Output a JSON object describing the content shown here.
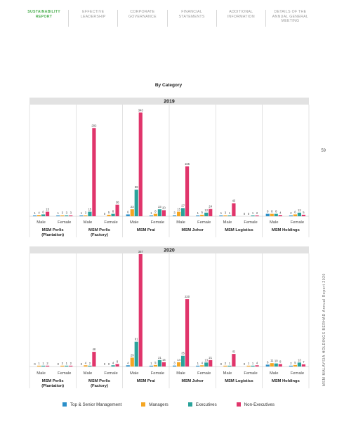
{
  "nav": [
    {
      "label": "SUSTAINABILITY REPORT",
      "active": true
    },
    {
      "label": "EFFECTIVE LEADERSHIP",
      "active": false
    },
    {
      "label": "CORPORATE GOVERNANCE",
      "active": false
    },
    {
      "label": "FINANCIAL STATEMENTS",
      "active": false
    },
    {
      "label": "ADDITIONAL INFORMATION",
      "active": false
    },
    {
      "label": "DETAILS OF THE ANNUAL GENERAL MEETING",
      "active": false
    }
  ],
  "section_title": "By Category",
  "page_number": "59",
  "side_text": "MSM MALAYSIA HOLDINGS BERHAD   Annual Report 2020",
  "colors": {
    "top": "#2b8fc9",
    "managers": "#f5a623",
    "executives": "#2aa39b",
    "non_exec": "#e0356b",
    "year_band": "#e2e2e2"
  },
  "chart_data": {
    "type": "bar",
    "groups": [
      {
        "name": "MSM Perlis (Plantation)",
        "lines": [
          "MSM Perlis",
          "(Plantation)"
        ]
      },
      {
        "name": "MSM Perlis (Factory)",
        "lines": [
          "MSM Perlis",
          "(Factory)"
        ]
      },
      {
        "name": "MSM Prai",
        "lines": [
          "MSM Prai"
        ]
      },
      {
        "name": "MSM Johor",
        "lines": [
          "MSM Johor"
        ]
      },
      {
        "name": "MSM Logistics",
        "lines": [
          "MSM Logistics"
        ]
      },
      {
        "name": "MSM Holdings",
        "lines": [
          "MSM Holdings"
        ]
      }
    ],
    "genders": [
      "Male",
      "Female"
    ],
    "series": [
      "Top & Senior Management",
      "Managers",
      "Executives",
      "Non-Executives"
    ],
    "panels": [
      {
        "year": "2019",
        "values": [
          [
            [
              1,
              4,
              6,
              15
            ],
            [
              1,
              3,
              3,
              3
            ]
          ],
          [
            [
              1,
              3,
              15,
              292
            ],
            [
              0,
              5,
              8,
              38
            ]
          ],
          [
            [
              6,
              23,
              88,
              343
            ],
            [
              1,
              8,
              23,
              20
            ]
          ],
          [
            [
              3,
              15,
              27,
              165
            ],
            [
              1,
              5,
              12,
              24
            ]
          ],
          [
            [
              1,
              3,
              1,
              43
            ],
            [
              0,
              0,
              1,
              2
            ]
          ],
          [
            [
              8,
              8,
              8,
              4
            ],
            [
              2,
              6,
              12,
              5
            ]
          ]
        ]
      },
      {
        "year": "2020",
        "values": [
          [
            [
              0,
              1,
              1,
              2
            ],
            [
              0,
              2,
              1,
              2
            ]
          ],
          [
            [
              0,
              4,
              2,
              48
            ],
            [
              0,
              0,
              4,
              8
            ]
          ],
          [
            [
              4,
              29,
              81,
              367
            ],
            [
              1,
              5,
              21,
              14
            ]
          ],
          [
            [
              3,
              14,
              35,
              220
            ],
            [
              1,
              4,
              13,
              21
            ]
          ],
          [
            [
              0,
              2,
              1,
              41
            ],
            [
              0,
              1,
              1,
              4
            ]
          ],
          [
            [
              6,
              11,
              10,
              8
            ],
            [
              2,
              5,
              13,
              7
            ]
          ]
        ]
      }
    ]
  }
}
